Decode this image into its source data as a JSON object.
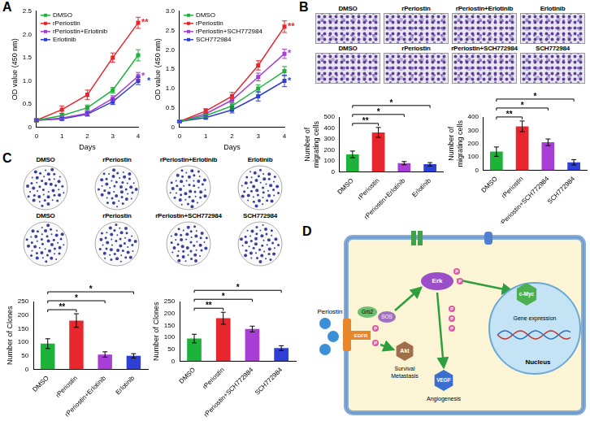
{
  "panel_labels": [
    "A",
    "B",
    "C",
    "D"
  ],
  "chart_data": [
    {
      "type": "line",
      "x": [
        0,
        1,
        2,
        3,
        4
      ],
      "x_label": "Days",
      "y_label": "OD value (450 nm)",
      "xlim": [
        0,
        4
      ],
      "xticks": [
        0,
        1,
        2,
        3,
        4
      ],
      "ylim": [
        0,
        2.5
      ],
      "yticks": [
        0,
        0.5,
        {
          "value": 1,
          "label": "1.0"
        },
        1.5,
        {
          "value": 2,
          "label": "2.0"
        },
        2.5
      ],
      "grid": false,
      "legend": "upper left",
      "marker": "square",
      "series": [
        {
          "name": "DMSO",
          "color": "#1db33a",
          "values": [
            0.15,
            0.25,
            0.42,
            0.8,
            1.55
          ],
          "errors": [
            0.02,
            0.05,
            0.06,
            0.06,
            0.12
          ]
        },
        {
          "name": "rPeriostin",
          "color": "#e8262e",
          "values": [
            0.15,
            0.38,
            0.7,
            1.5,
            2.25
          ],
          "errors": [
            0.02,
            0.08,
            0.1,
            0.1,
            0.12
          ]
        },
        {
          "name": "rPeriostin+Erlotinib",
          "color": "#a83ed6",
          "values": [
            0.15,
            0.2,
            0.3,
            0.62,
            1.1
          ],
          "errors": [
            0.02,
            0.04,
            0.05,
            0.06,
            0.08
          ]
        },
        {
          "name": "Erlotinib",
          "color": "#2f3fd6",
          "values": [
            0.15,
            0.18,
            0.28,
            0.55,
            1.0
          ],
          "errors": [
            0.02,
            0.03,
            0.04,
            0.06,
            0.08
          ]
        }
      ],
      "annotations": [
        {
          "series": "rPeriostin",
          "label": "**"
        },
        {
          "series": "rPeriostin+Erlotinib",
          "label": "*"
        },
        {
          "series": "Erlotinib",
          "label": "*"
        }
      ]
    },
    {
      "type": "line",
      "x": [
        0,
        1,
        2,
        3,
        4
      ],
      "x_label": "Days",
      "y_label": "OD value (450 nm)",
      "xlim": [
        0,
        4
      ],
      "xticks": [
        0,
        1,
        2,
        3,
        4
      ],
      "ylim": [
        0,
        3
      ],
      "yticks": [
        0,
        0.5,
        {
          "value": 1,
          "label": "1.0"
        },
        1.5,
        {
          "value": 2,
          "label": "2.0"
        },
        2.5,
        {
          "value": 3,
          "label": "3.0"
        }
      ],
      "grid": false,
      "legend": "upper left",
      "marker": "square",
      "series": [
        {
          "name": "DMSO",
          "color": "#1db33a",
          "values": [
            0.15,
            0.3,
            0.55,
            1.0,
            1.45
          ],
          "errors": [
            0.02,
            0.05,
            0.08,
            0.1,
            0.12
          ]
        },
        {
          "name": "rPeriostin",
          "color": "#e8262e",
          "values": [
            0.15,
            0.42,
            0.8,
            1.6,
            2.6
          ],
          "errors": [
            0.02,
            0.06,
            0.1,
            0.12,
            0.15
          ]
        },
        {
          "name": "rPeriostin+SCH772984",
          "color": "#a83ed6",
          "values": [
            0.15,
            0.35,
            0.7,
            1.3,
            1.9
          ],
          "errors": [
            0.02,
            0.05,
            0.08,
            0.1,
            0.12
          ]
        },
        {
          "name": "SCH772984",
          "color": "#2f3fd6",
          "values": [
            0.15,
            0.25,
            0.45,
            0.8,
            1.2
          ],
          "errors": [
            0.02,
            0.04,
            0.08,
            0.12,
            0.15
          ]
        }
      ],
      "annotations": [
        {
          "series": "rPeriostin",
          "label": "**"
        },
        {
          "series": "rPeriostin+SCH772984",
          "label": "*"
        },
        {
          "series": "SCH772984",
          "label": "*"
        }
      ]
    },
    {
      "type": "bar",
      "categories": [
        "DMSO",
        "rPeriostin",
        "rPeriostin+Erlotinib",
        "Erlotinib"
      ],
      "values": [
        160,
        360,
        80,
        70
      ],
      "errors": [
        30,
        45,
        15,
        15
      ],
      "colors": [
        "#1db33a",
        "#e8262e",
        "#a83ed6",
        "#2f3fd6"
      ],
      "y_label": [
        "Number of",
        "migrating cells"
      ],
      "ylim": [
        0,
        500
      ],
      "yticks": [
        0,
        100,
        200,
        300,
        400,
        500
      ],
      "grid": false,
      "significance": [
        {
          "pair": [
            "DMSO",
            "rPeriostin"
          ],
          "label": "**"
        },
        {
          "pair": [
            "DMSO",
            "rPeriostin+Erlotinib"
          ],
          "label": "*"
        },
        {
          "pair": [
            "DMSO",
            "Erlotinib"
          ],
          "label": "*"
        }
      ]
    },
    {
      "type": "bar",
      "categories": [
        "DMSO",
        "rPeriostin",
        "rPeriostin+SCH772984",
        "SCH772984"
      ],
      "values": [
        140,
        330,
        210,
        60
      ],
      "errors": [
        35,
        40,
        25,
        20
      ],
      "colors": [
        "#1db33a",
        "#e8262e",
        "#a83ed6",
        "#2f3fd6"
      ],
      "y_label": [
        "Number of",
        "migrating cells"
      ],
      "ylim": [
        0,
        400
      ],
      "yticks": [
        0,
        100,
        200,
        300,
        400
      ],
      "grid": false,
      "significance": [
        {
          "pair": [
            "DMSO",
            "rPeriostin"
          ],
          "label": "**"
        },
        {
          "pair": [
            "DMSO",
            "rPeriostin+SCH772984"
          ],
          "label": "*"
        },
        {
          "pair": [
            "DMSO",
            "SCH772984"
          ],
          "label": "*"
        }
      ]
    },
    {
      "type": "bar",
      "categories": [
        "DMSO",
        "rPeriostin",
        "rPeriostin+Erlotinib",
        "Erlotinib"
      ],
      "values": [
        95,
        180,
        55,
        50
      ],
      "errors": [
        18,
        25,
        10,
        8
      ],
      "colors": [
        "#1db33a",
        "#e8262e",
        "#a83ed6",
        "#2f3fd6"
      ],
      "y_label": "Number of Clones",
      "ylim": [
        0,
        250
      ],
      "yticks": [
        0,
        50,
        100,
        150,
        200,
        250
      ],
      "grid": false,
      "significance": [
        {
          "pair": [
            "DMSO",
            "rPeriostin"
          ],
          "label": "**"
        },
        {
          "pair": [
            "DMSO",
            "rPeriostin+Erlotinib"
          ],
          "label": "*"
        },
        {
          "pair": [
            "DMSO",
            "Erlotinib"
          ],
          "label": "*"
        }
      ]
    },
    {
      "type": "bar",
      "categories": [
        "DMSO",
        "rPeriostin",
        "rPeriostin+SCH772984",
        "SCH772984"
      ],
      "values": [
        95,
        180,
        135,
        55
      ],
      "errors": [
        18,
        25,
        12,
        10
      ],
      "colors": [
        "#1db33a",
        "#e8262e",
        "#a83ed6",
        "#2f3fd6"
      ],
      "y_label": "Number of Clones",
      "ylim": [
        0,
        250
      ],
      "yticks": [
        0,
        50,
        100,
        150,
        200,
        250
      ],
      "grid": false,
      "significance": [
        {
          "pair": [
            "DMSO",
            "rPeriostin"
          ],
          "label": "**"
        },
        {
          "pair": [
            "DMSO",
            "rPeriostin+SCH772984"
          ],
          "label": "*"
        },
        {
          "pair": [
            "DMSO",
            "SCH772984"
          ],
          "label": "*"
        }
      ]
    }
  ],
  "images": {
    "B": [
      [
        "DMSO",
        "rPeriostin",
        "rPeriostin+Erlotinib",
        "Erlotinib"
      ],
      [
        "DMSO",
        "rPeriostin",
        "rPeriostin+SCH772984",
        "SCH772984"
      ]
    ],
    "C": [
      [
        "DMSO",
        "rPeriostin",
        "rPeriostin+Erlotinib",
        "Erlotinib"
      ],
      [
        "DMSO",
        "rPeriostin",
        "rPeriostin+SCH772984",
        "SCH772984"
      ]
    ]
  },
  "diagram": {
    "ligand": "Periostin",
    "receptor": "EGFR",
    "adaptors": [
      "Grb2",
      "SOS"
    ],
    "kinase": "Erk",
    "akt": "Akt",
    "akt_effect": [
      "Survival",
      "Metastasis"
    ],
    "vegf": "VEGF",
    "vegf_effect": "Angiogenesis",
    "factor": "c-Myc",
    "gene": "Gene expression",
    "nucleus": "Nucleus",
    "phospho": "P"
  }
}
